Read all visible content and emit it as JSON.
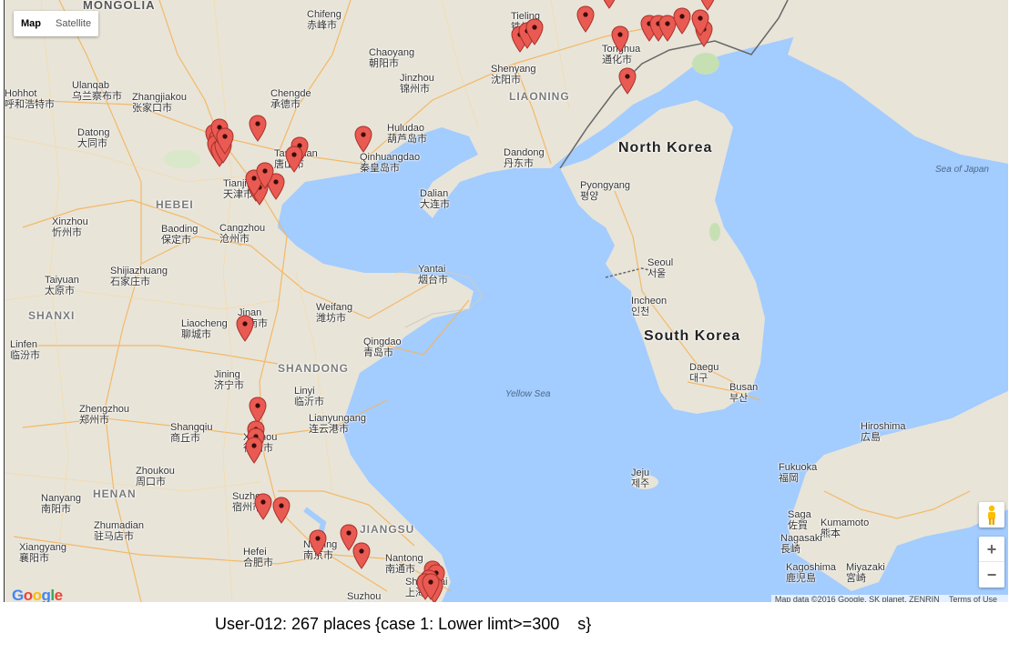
{
  "map": {
    "map_type_buttons": [
      {
        "label": "Map",
        "active": true
      },
      {
        "label": "Satellite",
        "active": false
      }
    ],
    "countries": [
      "MONGOLIA",
      "North Korea",
      "South Korea"
    ],
    "provinces": [
      "LIAONING",
      "HEBEI",
      "SHANXI",
      "SHANDONG",
      "HENAN",
      "JIANGSU"
    ],
    "seas": [
      "Yellow Sea",
      "Sea of Japan"
    ],
    "cities": [
      {
        "en": "Chifeng",
        "zh": "赤峰市"
      },
      {
        "en": "Tieling",
        "zh": "铁岭市"
      },
      {
        "en": "Chaoyang",
        "zh": "朝阳市"
      },
      {
        "en": "Ulanqab",
        "zh": "乌兰察布市"
      },
      {
        "en": "Hohhot",
        "zh": "呼和浩特市"
      },
      {
        "en": "Zhangjiakou",
        "zh": "张家口市"
      },
      {
        "en": "Chengde",
        "zh": "承德市"
      },
      {
        "en": "Jinzhou",
        "zh": "锦州市"
      },
      {
        "en": "Shenyang",
        "zh": "沈阳市"
      },
      {
        "en": "Tonghua",
        "zh": "通化市"
      },
      {
        "en": "Datong",
        "zh": "大同市"
      },
      {
        "en": "Huludao",
        "zh": "葫芦岛市"
      },
      {
        "en": "Qinhuangdao",
        "zh": "秦皇岛市"
      },
      {
        "en": "Tangshan",
        "zh": "唐山市"
      },
      {
        "en": "Dandong",
        "zh": "丹东市"
      },
      {
        "en": "Tianjin",
        "zh": "天津市"
      },
      {
        "en": "Dalian",
        "zh": "大连市"
      },
      {
        "en": "Pyongyang",
        "zh": "평양"
      },
      {
        "en": "Xinzhou",
        "zh": "忻州市"
      },
      {
        "en": "Baoding",
        "zh": "保定市"
      },
      {
        "en": "Cangzhou",
        "zh": "沧州市"
      },
      {
        "en": "Shijiazhuang",
        "zh": "石家庄市"
      },
      {
        "en": "Taiyuan",
        "zh": "太原市"
      },
      {
        "en": "Yantai",
        "zh": "烟台市"
      },
      {
        "en": "Seoul",
        "zh": "서울"
      },
      {
        "en": "Incheon",
        "zh": "인천"
      },
      {
        "en": "Jinan",
        "zh": "济南市"
      },
      {
        "en": "Weifang",
        "zh": "潍坊市"
      },
      {
        "en": "Liaocheng",
        "zh": "聊城市"
      },
      {
        "en": "Qingdao",
        "zh": "青岛市"
      },
      {
        "en": "Linfen",
        "zh": "临汾市"
      },
      {
        "en": "Jining",
        "zh": "济宁市"
      },
      {
        "en": "Linyi",
        "zh": "临沂市"
      },
      {
        "en": "Daegu",
        "zh": "대구"
      },
      {
        "en": "Busan",
        "zh": "부산"
      },
      {
        "en": "Zhengzhou",
        "zh": "郑州市"
      },
      {
        "en": "Lianyungang",
        "zh": "连云港市"
      },
      {
        "en": "Shangqiu",
        "zh": "商丘市"
      },
      {
        "en": "Xuzhou",
        "zh": "徐州市"
      },
      {
        "en": "Hiroshima",
        "zh": "広島"
      },
      {
        "en": "Zhoukou",
        "zh": "周口市"
      },
      {
        "en": "Jeju",
        "zh": "제주"
      },
      {
        "en": "Fukuoka",
        "zh": "福岡"
      },
      {
        "en": "Nanyang",
        "zh": "南阳市"
      },
      {
        "en": "Suzhou",
        "zh": "宿州市"
      },
      {
        "en": "Saga",
        "zh": "佐賀"
      },
      {
        "en": "Kumamoto",
        "zh": "熊本"
      },
      {
        "en": "Zhumadian",
        "zh": "驻马店市"
      },
      {
        "en": "Nagasaki",
        "zh": "長崎"
      },
      {
        "en": "Xiangyang",
        "zh": "襄阳市"
      },
      {
        "en": "Hefei",
        "zh": "合肥市"
      },
      {
        "en": "Nanjing",
        "zh": "南京市"
      },
      {
        "en": "Nantong",
        "zh": "南通市"
      },
      {
        "en": "Kagoshima",
        "zh": "鹿児島"
      },
      {
        "en": "Miyazaki",
        "zh": "宮崎"
      },
      {
        "en": "Suzhou",
        "zh": ""
      },
      {
        "en": "Shanghai",
        "zh": "上海市"
      }
    ],
    "marker_color": "#e85a52",
    "marker_count_visible": 50,
    "zoom_in_label": "+",
    "zoom_out_label": "−",
    "logo": "Google",
    "attribution": {
      "data": "Map data ©2016 Google, SK planet, ZENRIN",
      "terms": "Terms of Use"
    }
  },
  "caption": "User-012: 267 places {case 1: Lower limt>=300    s}"
}
